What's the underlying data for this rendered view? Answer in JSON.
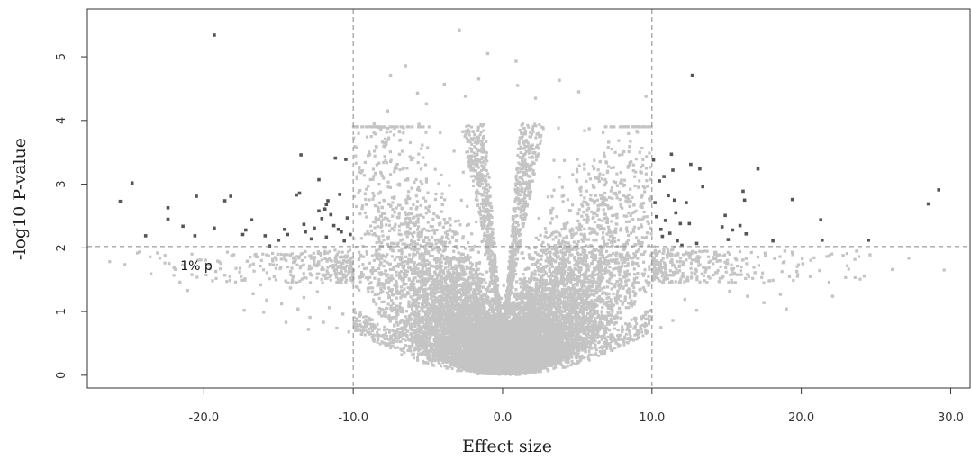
{
  "chart_data": {
    "type": "scatter",
    "xlabel": "Effect size",
    "ylabel": "-log10 P-value",
    "xlim": [
      -27.8,
      31.3
    ],
    "ylim": [
      -0.2,
      5.75
    ],
    "x_ticks": [
      {
        "value": -20,
        "label": "-20.0"
      },
      {
        "value": -10,
        "label": "-10.0"
      },
      {
        "value": 0,
        "label": "0.0"
      },
      {
        "value": 10,
        "label": "10.0"
      },
      {
        "value": 20,
        "label": "20.0"
      },
      {
        "value": 30,
        "label": "30.0"
      }
    ],
    "y_ticks": [
      {
        "value": 0,
        "label": "0"
      },
      {
        "value": 1,
        "label": "1"
      },
      {
        "value": 2,
        "label": "2"
      },
      {
        "value": 3,
        "label": "3"
      },
      {
        "value": 4,
        "label": "4"
      },
      {
        "value": 5,
        "label": "5"
      }
    ],
    "reference_lines": {
      "vertical": [
        -10,
        10
      ],
      "horizontal": [
        2.02
      ],
      "style": "dashed",
      "color": "#888888"
    },
    "annotation": {
      "text": "1% p",
      "x": -20.5,
      "y": 1.72
    },
    "colors": {
      "nonsignificant": "#c4c4c4",
      "significant": "#555555"
    },
    "series": [
      {
        "type": "scatter",
        "points": [
          [
            -25.6,
            2.73
          ],
          [
            -24.8,
            3.02
          ],
          [
            -23.9,
            2.19
          ],
          [
            -22.4,
            2.63
          ],
          [
            -22.4,
            2.45
          ],
          [
            -21.4,
            2.34
          ],
          [
            -20.5,
            2.81
          ],
          [
            -20.6,
            2.19
          ],
          [
            -19.3,
            2.31
          ],
          [
            -18.6,
            2.74
          ],
          [
            -18.2,
            2.81
          ],
          [
            -17.4,
            2.21
          ],
          [
            -17.2,
            2.28
          ],
          [
            -16.8,
            2.44
          ],
          [
            -15.9,
            2.19
          ],
          [
            -15.6,
            2.03
          ],
          [
            -15.0,
            2.12
          ],
          [
            -14.6,
            2.29
          ],
          [
            -14.4,
            2.21
          ],
          [
            -13.8,
            2.83
          ],
          [
            -13.6,
            2.86
          ],
          [
            -13.5,
            3.46
          ],
          [
            -13.3,
            2.37
          ],
          [
            -13.2,
            2.25
          ],
          [
            -12.8,
            2.14
          ],
          [
            -12.6,
            2.31
          ],
          [
            -12.3,
            2.58
          ],
          [
            -12.1,
            2.46
          ],
          [
            -11.9,
            2.61
          ],
          [
            -11.8,
            2.17
          ],
          [
            -11.7,
            2.74
          ],
          [
            -11.5,
            2.52
          ],
          [
            -11.3,
            2.35
          ],
          [
            -11.2,
            3.41
          ],
          [
            -11.0,
            2.29
          ],
          [
            -10.9,
            2.84
          ],
          [
            -10.8,
            2.25
          ],
          [
            -10.6,
            2.11
          ],
          [
            -10.5,
            3.39
          ],
          [
            -10.4,
            2.47
          ],
          [
            -10.2,
            2.21
          ],
          [
            -12.3,
            3.07
          ],
          [
            -11.8,
            2.68
          ],
          [
            -19.3,
            5.34
          ],
          [
            10.1,
            3.38
          ],
          [
            10.2,
            2.71
          ],
          [
            10.3,
            2.49
          ],
          [
            10.5,
            3.05
          ],
          [
            10.6,
            2.29
          ],
          [
            10.7,
            2.18
          ],
          [
            10.8,
            3.12
          ],
          [
            10.9,
            2.43
          ],
          [
            11.1,
            2.82
          ],
          [
            11.2,
            2.23
          ],
          [
            11.3,
            3.47
          ],
          [
            11.4,
            3.22
          ],
          [
            11.5,
            2.75
          ],
          [
            11.6,
            2.55
          ],
          [
            11.7,
            2.11
          ],
          [
            11.9,
            2.38
          ],
          [
            12.0,
            2.04
          ],
          [
            12.3,
            2.71
          ],
          [
            12.5,
            2.38
          ],
          [
            12.6,
            3.31
          ],
          [
            12.7,
            4.71
          ],
          [
            13.0,
            2.07
          ],
          [
            13.2,
            3.24
          ],
          [
            13.4,
            2.96
          ],
          [
            14.7,
            2.33
          ],
          [
            14.9,
            2.51
          ],
          [
            15.1,
            2.13
          ],
          [
            15.4,
            2.28
          ],
          [
            15.9,
            2.35
          ],
          [
            16.1,
            2.89
          ],
          [
            16.2,
            2.75
          ],
          [
            16.3,
            2.22
          ],
          [
            17.1,
            3.24
          ],
          [
            18.1,
            2.11
          ],
          [
            19.4,
            2.76
          ],
          [
            21.3,
            2.44
          ],
          [
            21.4,
            2.12
          ],
          [
            24.5,
            2.12
          ],
          [
            28.5,
            2.69
          ],
          [
            29.2,
            2.91
          ]
        ]
      },
      {
        "type": "scatter",
        "points": [
          [
            -23.1,
            1.92
          ],
          [
            -22.6,
            1.88
          ],
          [
            -22.0,
            1.69
          ],
          [
            -21.6,
            1.46
          ],
          [
            -21.1,
            1.33
          ],
          [
            -20.8,
            1.58
          ],
          [
            -20.2,
            1.81
          ],
          [
            -19.6,
            1.74
          ],
          [
            -19.2,
            1.63
          ],
          [
            -18.6,
            1.57
          ],
          [
            -18.0,
            1.89
          ],
          [
            -17.6,
            1.62
          ],
          [
            -17.1,
            1.79
          ],
          [
            -16.7,
            1.28
          ],
          [
            -16.2,
            1.42
          ],
          [
            -15.8,
            1.18
          ],
          [
            -15.3,
            1.55
          ],
          [
            -14.8,
            1.12
          ],
          [
            -14.2,
            1.37
          ],
          [
            -13.7,
            1.04
          ],
          [
            -13.3,
            1.22
          ],
          [
            -12.9,
            0.91
          ],
          [
            -12.4,
            1.31
          ],
          [
            -12.0,
            0.83
          ],
          [
            -11.6,
            1.06
          ],
          [
            -11.1,
            0.74
          ],
          [
            -10.7,
            0.96
          ],
          [
            -10.3,
            0.68
          ],
          [
            -17.3,
            1.02
          ],
          [
            -16.0,
            0.99
          ],
          [
            -14.5,
            0.83
          ],
          [
            -13.0,
            0.72
          ],
          [
            -7.5,
            4.71
          ],
          [
            -7.7,
            4.15
          ],
          [
            -6.5,
            4.86
          ],
          [
            -5.7,
            4.43
          ],
          [
            -5.1,
            4.26
          ],
          [
            -3.9,
            4.57
          ],
          [
            -2.5,
            4.38
          ],
          [
            -1.6,
            4.65
          ],
          [
            1.0,
            4.55
          ],
          [
            2.2,
            4.35
          ],
          [
            3.8,
            4.63
          ],
          [
            5.1,
            4.45
          ],
          [
            9.6,
            4.38
          ],
          [
            -8.6,
            3.95
          ],
          [
            -7.8,
            3.62
          ],
          [
            -6.9,
            3.82
          ],
          [
            -5.6,
            3.94
          ],
          [
            5.8,
            3.87
          ],
          [
            7.1,
            3.66
          ],
          [
            8.5,
            3.59
          ],
          [
            -2.9,
            5.42
          ],
          [
            -1.0,
            5.05
          ],
          [
            0.9,
            4.93
          ],
          [
            13.6,
            1.68
          ],
          [
            14.1,
            1.85
          ],
          [
            14.5,
            1.47
          ],
          [
            15.2,
            1.32
          ],
          [
            15.7,
            1.58
          ],
          [
            16.4,
            1.24
          ],
          [
            16.9,
            1.61
          ],
          [
            17.5,
            1.14
          ],
          [
            18.1,
            1.49
          ],
          [
            18.6,
            1.27
          ],
          [
            19.0,
            1.04
          ],
          [
            19.7,
            1.63
          ],
          [
            20.1,
            1.75
          ],
          [
            20.6,
            1.55
          ],
          [
            22.1,
            1.24
          ],
          [
            22.8,
            1.88
          ],
          [
            23.7,
            1.95
          ],
          [
            24.6,
            1.89
          ],
          [
            26.1,
            1.66
          ],
          [
            17.6,
            1.88
          ],
          [
            18.9,
            1.95
          ],
          [
            12.2,
            1.19
          ],
          [
            11.4,
            0.86
          ],
          [
            10.6,
            0.75
          ],
          [
            13.0,
            1.02
          ],
          [
            -9.4,
            3.21
          ],
          [
            -9.2,
            2.85
          ],
          [
            -9.0,
            3.45
          ],
          [
            8.6,
            3.35
          ],
          [
            9.1,
            2.95
          ],
          [
            9.3,
            3.18
          ]
        ]
      }
    ],
    "cloud_model": {
      "n": 12000,
      "scale": 4.2,
      "exponent": 2,
      "xspread": 3.1,
      "jitter_sd": 0.42
    }
  }
}
